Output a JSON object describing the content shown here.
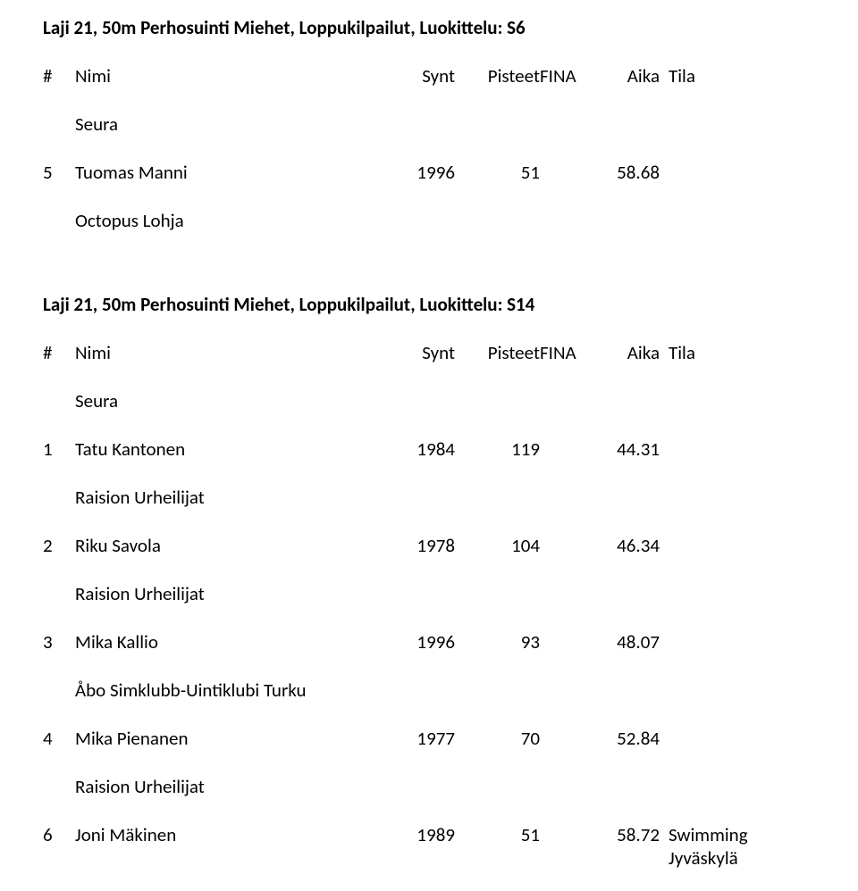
{
  "labels": {
    "rank": "#",
    "name": "Nimi",
    "year": "Synt",
    "points": "Pisteet",
    "fina": "FINA",
    "time": "Aika",
    "status": "Tila",
    "club": "Seura"
  },
  "sections": [
    {
      "title": "Laji 21, 50m Perhosuinti Miehet, Loppukilpailut, Luokittelu: S6",
      "rows": [
        {
          "rank": "5",
          "name": "Tuomas Manni",
          "year": "1996",
          "points": "51",
          "time": "58.68",
          "status": "",
          "club": "Octopus Lohja"
        }
      ]
    },
    {
      "title": "Laji 21, 50m Perhosuinti Miehet, Loppukilpailut, Luokittelu: S14",
      "rows": [
        {
          "rank": "1",
          "name": "Tatu Kantonen",
          "year": "1984",
          "points": "119",
          "time": "44.31",
          "status": "",
          "club": "Raision Urheilijat"
        },
        {
          "rank": "2",
          "name": "Riku Savola",
          "year": "1978",
          "points": "104",
          "time": "46.34",
          "status": "",
          "club": "Raision Urheilijat"
        },
        {
          "rank": "3",
          "name": "Mika Kallio",
          "year": "1996",
          "points": "93",
          "time": "48.07",
          "status": "",
          "club": "Åbo Simklubb-Uintiklubi Turku"
        },
        {
          "rank": "4",
          "name": "Mika Pienanen",
          "year": "1977",
          "points": "70",
          "time": "52.84",
          "status": "",
          "club": "Raision Urheilijat"
        },
        {
          "rank": "6",
          "name": "Joni Mäkinen",
          "year": "1989",
          "points": "51",
          "time": "58.72",
          "status": "Swimming Jyväskylä",
          "club": null
        }
      ]
    }
  ]
}
